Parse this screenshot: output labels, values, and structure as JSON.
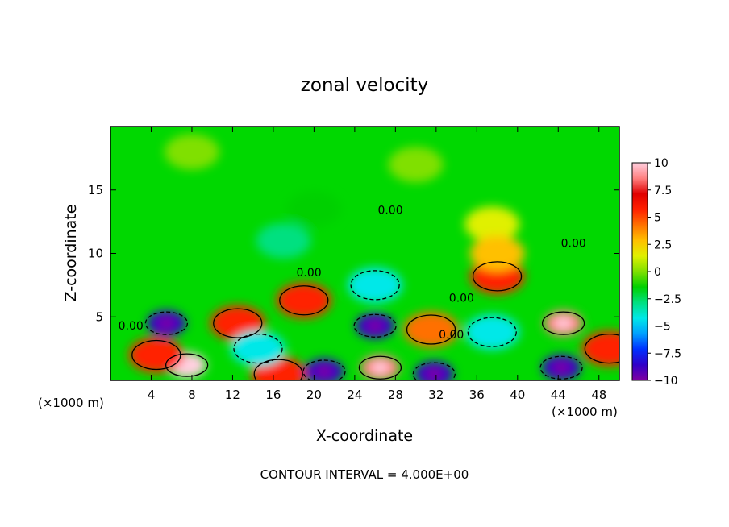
{
  "chart_data": {
    "type": "heatmap",
    "title": "zonal velocity",
    "xlabel": "X-coordinate",
    "ylabel": "Z-coordinate",
    "x_unit_label": "(×1000 m)",
    "x_unit_label_right": "(×1000 m)",
    "xlim": [
      0,
      50
    ],
    "ylim": [
      0,
      20
    ],
    "x_ticks": [
      4,
      8,
      12,
      16,
      20,
      24,
      28,
      32,
      36,
      40,
      44,
      48
    ],
    "y_ticks": [
      5,
      10,
      15
    ],
    "contour_interval_text": "CONTOUR INTERVAL = 4.000E+00",
    "contour_labels": [
      {
        "text": "0.00",
        "x": 27.5,
        "y": 13.1
      },
      {
        "text": "0.00",
        "x": 19.5,
        "y": 8.2
      },
      {
        "text": "0.00",
        "x": 2.0,
        "y": 4.0
      },
      {
        "text": "0.00",
        "x": 34.5,
        "y": 6.2
      },
      {
        "text": "0.00",
        "x": 33.5,
        "y": 3.3
      },
      {
        "text": "0.00",
        "x": 45.5,
        "y": 10.5
      }
    ],
    "colorbar": {
      "min": -10,
      "max": 10,
      "tick_labels": [
        "10",
        "7.5",
        "5",
        "2.5",
        "0",
        "−2.5",
        "−5",
        "−7.5",
        "−10"
      ],
      "colors": [
        "#8000a0",
        "#3000c8",
        "#0030ff",
        "#00a0ff",
        "#00e8e8",
        "#00e080",
        "#00d000",
        "#80e000",
        "#e0f000",
        "#ffc000",
        "#ff7000",
        "#ff2000",
        "#e00000",
        "#ff8080",
        "#ffd0e0"
      ]
    },
    "features": [
      {
        "x": 5.5,
        "y": 4.5,
        "value": -9
      },
      {
        "x": 7.5,
        "y": 1.2,
        "value": 9.5
      },
      {
        "x": 4.5,
        "y": 2.0,
        "value": 6
      },
      {
        "x": 12.5,
        "y": 4.5,
        "value": 5
      },
      {
        "x": 16.5,
        "y": 0.5,
        "value": 6
      },
      {
        "x": 19.0,
        "y": 6.3,
        "value": 5.5
      },
      {
        "x": 21.0,
        "y": 0.7,
        "value": -8
      },
      {
        "x": 26.5,
        "y": 1.0,
        "value": 9
      },
      {
        "x": 26.0,
        "y": 4.3,
        "value": -8
      },
      {
        "x": 31.5,
        "y": 4.0,
        "value": 4
      },
      {
        "x": 31.8,
        "y": 0.5,
        "value": -8
      },
      {
        "x": 38.0,
        "y": 8.2,
        "value": 6
      },
      {
        "x": 37.5,
        "y": 3.8,
        "value": -5
      },
      {
        "x": 44.5,
        "y": 4.5,
        "value": 8
      },
      {
        "x": 44.3,
        "y": 1.0,
        "value": -8
      },
      {
        "x": 37.5,
        "y": 12.3,
        "value": 1.5
      },
      {
        "x": 17.0,
        "y": 11.0,
        "value": -3
      },
      {
        "x": 26.0,
        "y": 7.5,
        "value": -4
      },
      {
        "x": 14.5,
        "y": 2.5,
        "value": -4
      },
      {
        "x": 49.0,
        "y": 2.5,
        "value": 5
      },
      {
        "x": 8.0,
        "y": 18.0,
        "value": 0.5
      },
      {
        "x": 30.0,
        "y": 17.0,
        "value": 0.3
      },
      {
        "x": 20.0,
        "y": 13.5,
        "value": -1.5
      },
      {
        "x": 38.0,
        "y": 10.0,
        "value": 2.5
      }
    ]
  }
}
